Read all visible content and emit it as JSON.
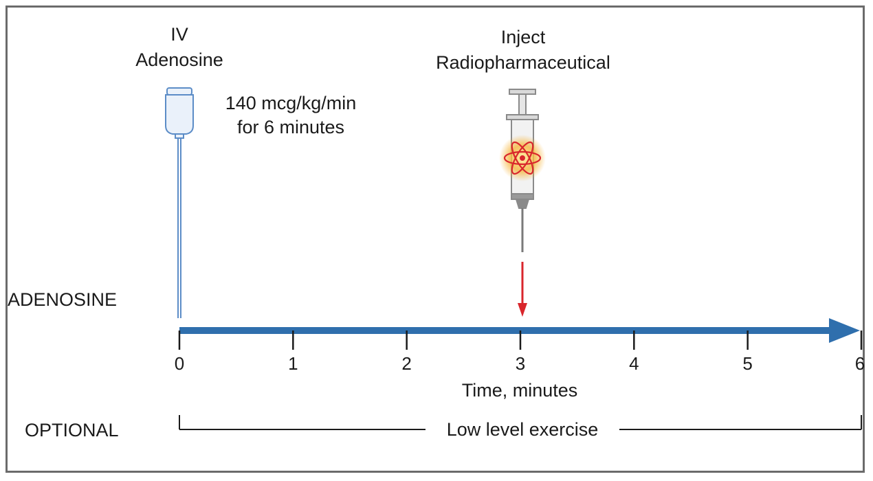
{
  "iv": {
    "line1": "IV",
    "line2": "Adenosine",
    "dose_line1": "140 mcg/kg/min",
    "dose_line2": "for 6 minutes"
  },
  "inject": {
    "line1": "Inject",
    "line2": "Radiopharmaceutical",
    "at_minute": 3
  },
  "rows": {
    "adenosine_label": "ADENOSINE",
    "optional_label": "OPTIONAL"
  },
  "axis": {
    "ticks": [
      "0",
      "1",
      "2",
      "3",
      "4",
      "5",
      "6"
    ],
    "label": "Time, minutes"
  },
  "exercise": {
    "label": "Low level exercise"
  },
  "colors": {
    "timeline": "#2f6fad",
    "iv_bag": "#5b8cc7",
    "arrow": "#d9262c",
    "atom": "#d9262c",
    "glow": "#f6b233",
    "syringe": "#8a8a8a"
  },
  "icons": [
    "iv-bag-icon",
    "syringe-icon",
    "atom-icon"
  ]
}
